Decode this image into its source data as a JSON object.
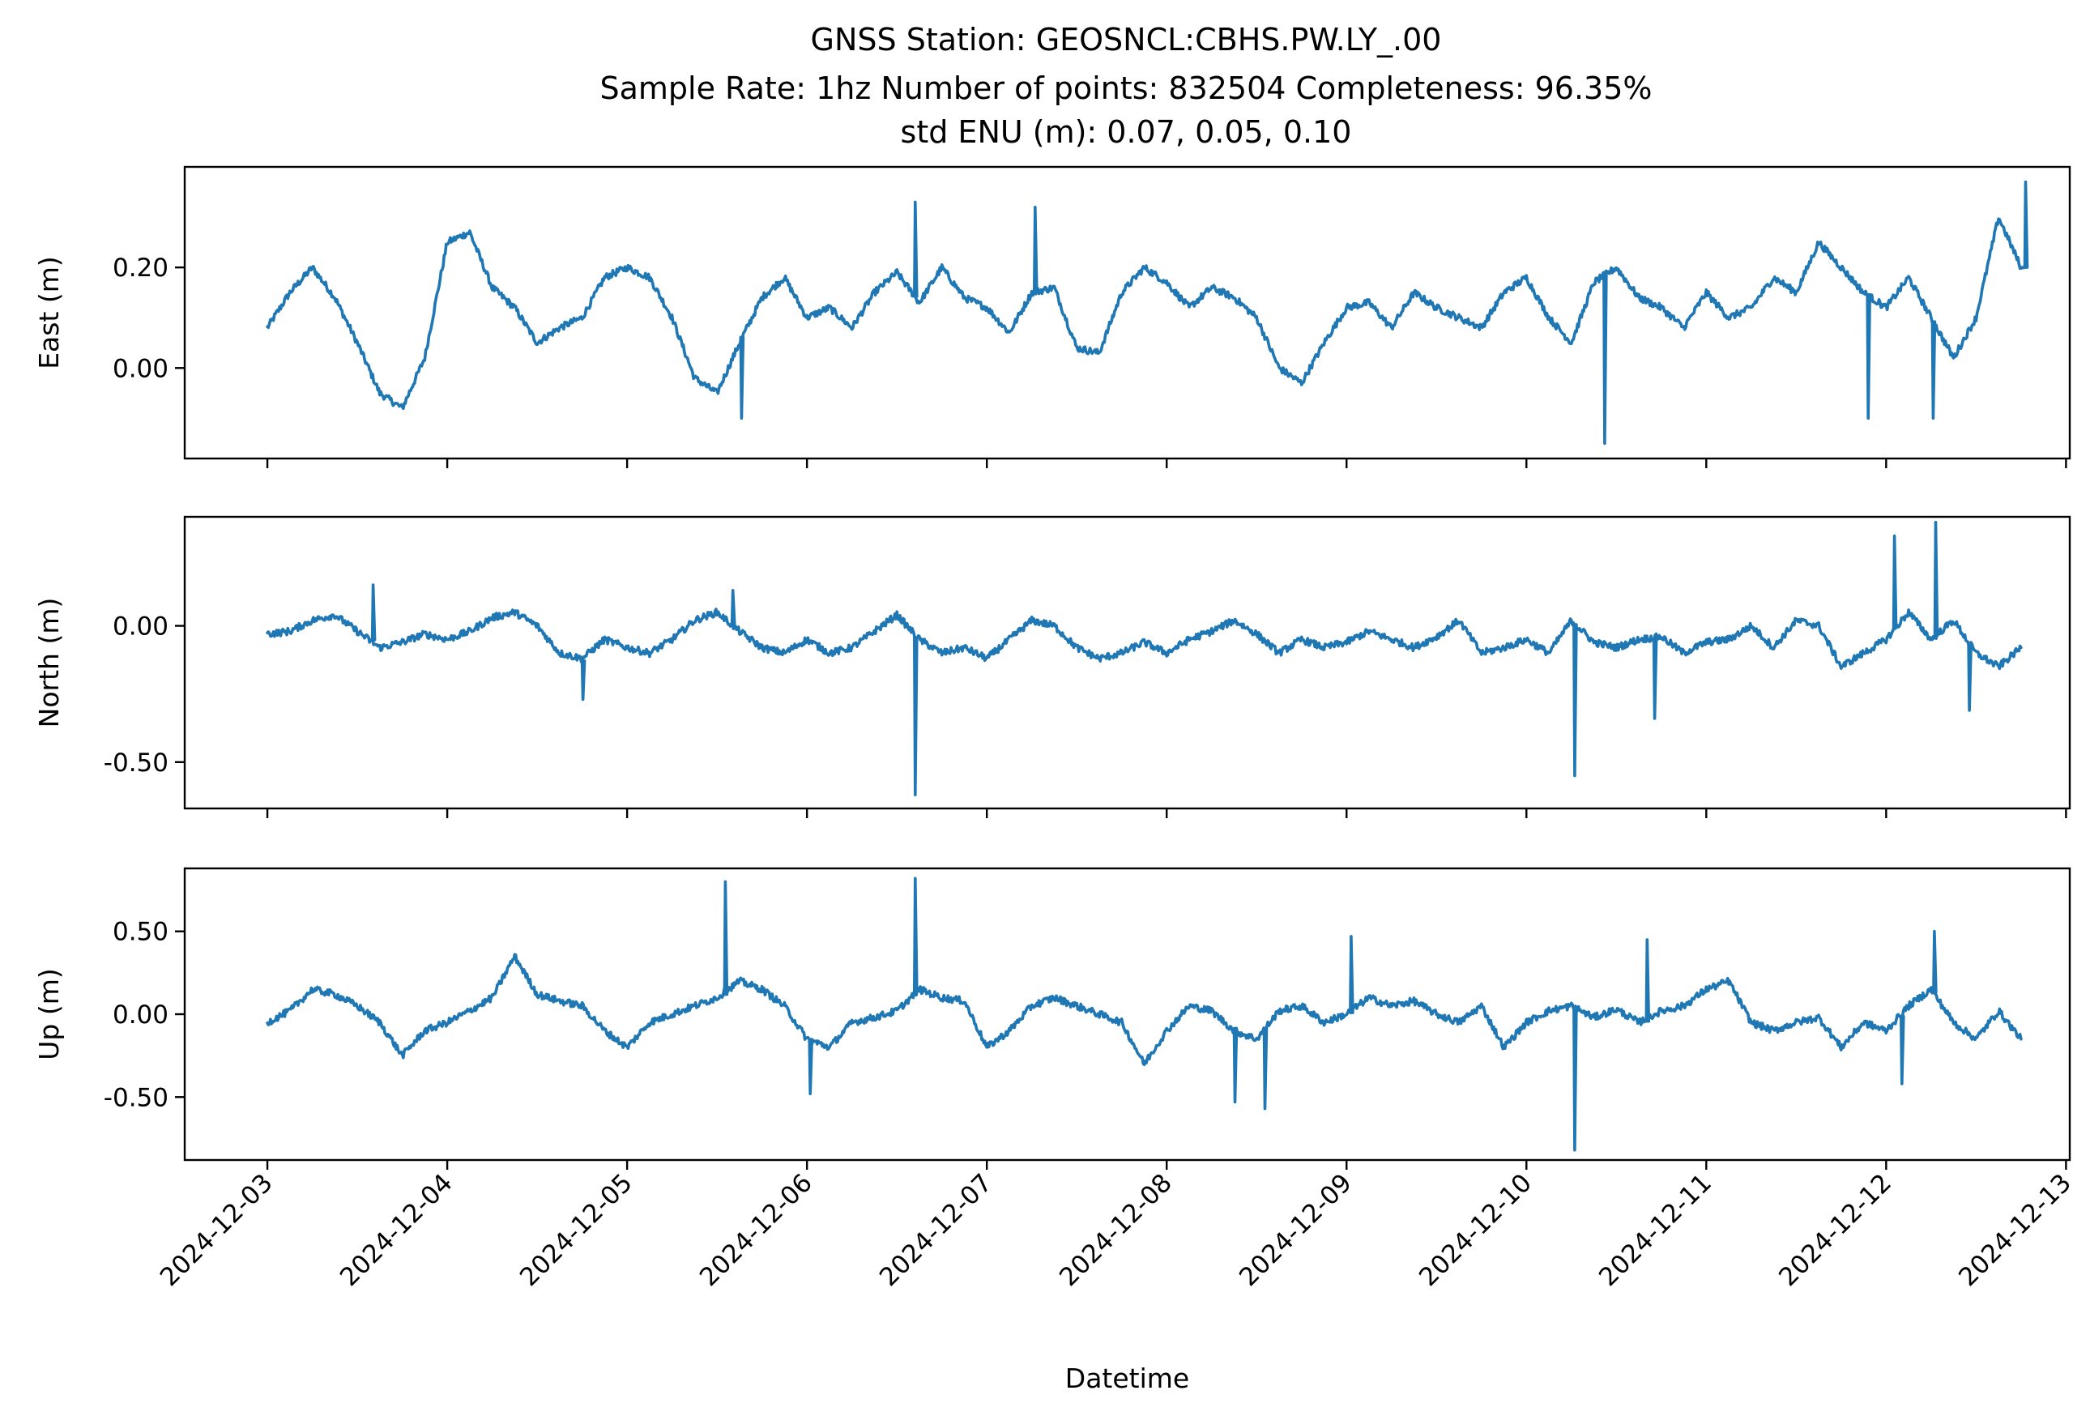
{
  "title": {
    "line1": "GNSS Station: GEOSNCL:CBHS.PW.LY_.00",
    "line2": "Sample Rate: 1hz   Number of points: 832504    Completeness:  96.35%",
    "line3": "std ENU (m):  0.07, 0.05, 0.10"
  },
  "colors": {
    "series": "#1f77b4"
  },
  "chart_data": [
    {
      "type": "line",
      "ylabel": "East (m)",
      "xlabel": "",
      "show_x_tick_labels": false,
      "xlim": [
        "2024-12-02T12:58",
        "2024-12-13T00:30"
      ],
      "ylim": [
        -0.18,
        0.4
      ],
      "yticks": [
        0.0,
        0.2
      ],
      "ytick_labels": [
        "0.00",
        "0.20"
      ],
      "series": [
        {
          "x": [
            "2024-12-03T00:00",
            "2024-12-03T03:00",
            "2024-12-03T06:00",
            "2024-12-03T09:00",
            "2024-12-03T12:00",
            "2024-12-03T15:00",
            "2024-12-03T18:00",
            "2024-12-03T21:00",
            "2024-12-04T00:00",
            "2024-12-04T03:00",
            "2024-12-04T06:00",
            "2024-12-04T09:00",
            "2024-12-04T12:00",
            "2024-12-04T15:00",
            "2024-12-04T18:00",
            "2024-12-04T21:00",
            "2024-12-05T00:00",
            "2024-12-05T03:00",
            "2024-12-05T06:00",
            "2024-12-05T09:00",
            "2024-12-05T12:00",
            "2024-12-05T15:00",
            "2024-12-05T18:00",
            "2024-12-05T21:00",
            "2024-12-06T00:00",
            "2024-12-06T03:00",
            "2024-12-06T06:00",
            "2024-12-06T09:00",
            "2024-12-06T12:00",
            "2024-12-06T15:00",
            "2024-12-06T18:00",
            "2024-12-06T21:00",
            "2024-12-07T00:00",
            "2024-12-07T03:00",
            "2024-12-07T06:00",
            "2024-12-07T09:00",
            "2024-12-07T12:00",
            "2024-12-07T15:00",
            "2024-12-07T18:00",
            "2024-12-07T21:00",
            "2024-12-08T00:00",
            "2024-12-08T03:00",
            "2024-12-08T06:00",
            "2024-12-08T09:00",
            "2024-12-08T12:00",
            "2024-12-08T15:00",
            "2024-12-08T18:00",
            "2024-12-08T21:00",
            "2024-12-09T00:00",
            "2024-12-09T03:00",
            "2024-12-09T06:00",
            "2024-12-09T09:00",
            "2024-12-09T12:00",
            "2024-12-09T15:00",
            "2024-12-09T18:00",
            "2024-12-09T21:00",
            "2024-12-10T00:00",
            "2024-12-10T03:00",
            "2024-12-10T06:00",
            "2024-12-10T09:00",
            "2024-12-10T12:00",
            "2024-12-10T15:00",
            "2024-12-10T18:00",
            "2024-12-10T21:00",
            "2024-12-11T00:00",
            "2024-12-11T03:00",
            "2024-12-11T06:00",
            "2024-12-11T09:00",
            "2024-12-11T12:00",
            "2024-12-11T15:00",
            "2024-12-11T18:00",
            "2024-12-11T21:00",
            "2024-12-12T00:00",
            "2024-12-12T03:00",
            "2024-12-12T06:00",
            "2024-12-12T09:00",
            "2024-12-12T12:00",
            "2024-12-12T15:00",
            "2024-12-12T18:00"
          ],
          "y": [
            0.08,
            0.15,
            0.2,
            0.14,
            0.05,
            -0.05,
            -0.08,
            0.02,
            0.25,
            0.27,
            0.16,
            0.12,
            0.05,
            0.08,
            0.1,
            0.18,
            0.2,
            0.18,
            0.1,
            -0.02,
            -0.05,
            0.05,
            0.14,
            0.18,
            0.1,
            0.12,
            0.08,
            0.15,
            0.19,
            0.13,
            0.2,
            0.14,
            0.12,
            0.07,
            0.15,
            0.16,
            0.04,
            0.03,
            0.15,
            0.2,
            0.17,
            0.12,
            0.16,
            0.14,
            0.1,
            0.0,
            -0.03,
            0.05,
            0.12,
            0.13,
            0.08,
            0.15,
            0.12,
            0.1,
            0.08,
            0.15,
            0.18,
            0.1,
            0.05,
            0.17,
            0.2,
            0.14,
            0.12,
            0.08,
            0.15,
            0.1,
            0.12,
            0.18,
            0.15,
            0.25,
            0.2,
            0.15,
            0.12,
            0.18,
            0.1,
            0.02,
            0.1,
            0.3,
            0.2
          ],
          "spikes": [
            [
              "2024-12-05T15:10",
              -0.1
            ],
            [
              "2024-12-06T14:20",
              0.33
            ],
            [
              "2024-12-07T06:20",
              0.32
            ],
            [
              "2024-12-10T10:20",
              -0.15
            ],
            [
              "2024-12-11T21:30",
              -0.1
            ],
            [
              "2024-12-12T06:10",
              -0.1
            ],
            [
              "2024-12-12T18:30",
              0.37
            ]
          ]
        }
      ]
    },
    {
      "type": "line",
      "ylabel": "North (m)",
      "xlabel": "",
      "show_x_tick_labels": false,
      "xlim": [
        "2024-12-02T12:58",
        "2024-12-13T00:30"
      ],
      "ylim": [
        -0.67,
        0.4
      ],
      "yticks": [
        -0.5,
        0.0
      ],
      "ytick_labels": [
        "-0.50",
        "0.00"
      ],
      "series": [
        {
          "x": [
            "2024-12-03T00:00",
            "2024-12-03T03:00",
            "2024-12-03T06:00",
            "2024-12-03T09:00",
            "2024-12-03T12:00",
            "2024-12-03T15:00",
            "2024-12-03T18:00",
            "2024-12-03T21:00",
            "2024-12-04T00:00",
            "2024-12-04T03:00",
            "2024-12-04T06:00",
            "2024-12-04T09:00",
            "2024-12-04T12:00",
            "2024-12-04T15:00",
            "2024-12-04T18:00",
            "2024-12-04T21:00",
            "2024-12-05T00:00",
            "2024-12-05T03:00",
            "2024-12-05T06:00",
            "2024-12-05T09:00",
            "2024-12-05T12:00",
            "2024-12-05T15:00",
            "2024-12-05T18:00",
            "2024-12-05T21:00",
            "2024-12-06T00:00",
            "2024-12-06T03:00",
            "2024-12-06T06:00",
            "2024-12-06T09:00",
            "2024-12-06T12:00",
            "2024-12-06T15:00",
            "2024-12-06T18:00",
            "2024-12-06T21:00",
            "2024-12-07T00:00",
            "2024-12-07T03:00",
            "2024-12-07T06:00",
            "2024-12-07T09:00",
            "2024-12-07T12:00",
            "2024-12-07T15:00",
            "2024-12-07T18:00",
            "2024-12-07T21:00",
            "2024-12-08T00:00",
            "2024-12-08T03:00",
            "2024-12-08T06:00",
            "2024-12-08T09:00",
            "2024-12-08T12:00",
            "2024-12-08T15:00",
            "2024-12-08T18:00",
            "2024-12-08T21:00",
            "2024-12-09T00:00",
            "2024-12-09T03:00",
            "2024-12-09T06:00",
            "2024-12-09T09:00",
            "2024-12-09T12:00",
            "2024-12-09T15:00",
            "2024-12-09T18:00",
            "2024-12-09T21:00",
            "2024-12-10T00:00",
            "2024-12-10T03:00",
            "2024-12-10T06:00",
            "2024-12-10T09:00",
            "2024-12-10T12:00",
            "2024-12-10T15:00",
            "2024-12-10T18:00",
            "2024-12-10T21:00",
            "2024-12-11T00:00",
            "2024-12-11T03:00",
            "2024-12-11T06:00",
            "2024-12-11T09:00",
            "2024-12-11T12:00",
            "2024-12-11T15:00",
            "2024-12-11T18:00",
            "2024-12-11T21:00",
            "2024-12-12T00:00",
            "2024-12-12T03:00",
            "2024-12-12T06:00",
            "2024-12-12T09:00",
            "2024-12-12T12:00",
            "2024-12-12T15:00",
            "2024-12-12T18:00"
          ],
          "y": [
            -0.03,
            -0.02,
            0.02,
            0.04,
            -0.02,
            -0.08,
            -0.06,
            -0.03,
            -0.05,
            -0.02,
            0.03,
            0.05,
            0.0,
            -0.1,
            -0.12,
            -0.05,
            -0.08,
            -0.1,
            -0.05,
            0.02,
            0.05,
            -0.02,
            -0.08,
            -0.1,
            -0.05,
            -0.1,
            -0.08,
            -0.02,
            0.04,
            -0.05,
            -0.1,
            -0.08,
            -0.12,
            -0.05,
            0.02,
            0.0,
            -0.08,
            -0.12,
            -0.1,
            -0.06,
            -0.1,
            -0.05,
            -0.02,
            0.02,
            -0.03,
            -0.1,
            -0.05,
            -0.08,
            -0.06,
            -0.02,
            -0.05,
            -0.08,
            -0.04,
            0.02,
            -0.1,
            -0.08,
            -0.05,
            -0.1,
            0.02,
            -0.06,
            -0.08,
            -0.05,
            -0.04,
            -0.1,
            -0.06,
            -0.05,
            0.0,
            -0.08,
            0.02,
            0.0,
            -0.15,
            -0.1,
            -0.05,
            0.05,
            -0.05,
            0.02,
            -0.1,
            -0.15,
            -0.08
          ],
          "spikes": [
            [
              "2024-12-03T14:00",
              0.15
            ],
            [
              "2024-12-04T18:00",
              -0.27
            ],
            [
              "2024-12-05T14:00",
              0.13
            ],
            [
              "2024-12-06T14:20",
              -0.62
            ],
            [
              "2024-12-10T06:20",
              -0.55
            ],
            [
              "2024-12-10T17:00",
              -0.34
            ],
            [
              "2024-12-12T01:00",
              0.33
            ],
            [
              "2024-12-12T06:30",
              0.38
            ],
            [
              "2024-12-12T11:00",
              -0.31
            ]
          ]
        }
      ]
    },
    {
      "type": "line",
      "ylabel": "Up (m)",
      "xlabel": "Datetime",
      "show_x_tick_labels": true,
      "xlim": [
        "2024-12-02T12:58",
        "2024-12-13T00:30"
      ],
      "ylim": [
        -0.88,
        0.88
      ],
      "yticks": [
        -0.5,
        0.0,
        0.5
      ],
      "ytick_labels": [
        "-0.50",
        "0.00",
        "0.50"
      ],
      "xticks": [
        "2024-12-03",
        "2024-12-04",
        "2024-12-05",
        "2024-12-06",
        "2024-12-07",
        "2024-12-08",
        "2024-12-09",
        "2024-12-10",
        "2024-12-11",
        "2024-12-12",
        "2024-12-13"
      ],
      "series": [
        {
          "x": [
            "2024-12-03T00:00",
            "2024-12-03T03:00",
            "2024-12-03T06:00",
            "2024-12-03T09:00",
            "2024-12-03T12:00",
            "2024-12-03T15:00",
            "2024-12-03T18:00",
            "2024-12-03T21:00",
            "2024-12-04T00:00",
            "2024-12-04T03:00",
            "2024-12-04T06:00",
            "2024-12-04T09:00",
            "2024-12-04T12:00",
            "2024-12-04T15:00",
            "2024-12-04T18:00",
            "2024-12-04T21:00",
            "2024-12-05T00:00",
            "2024-12-05T03:00",
            "2024-12-05T06:00",
            "2024-12-05T09:00",
            "2024-12-05T12:00",
            "2024-12-05T15:00",
            "2024-12-05T18:00",
            "2024-12-05T21:00",
            "2024-12-06T00:00",
            "2024-12-06T03:00",
            "2024-12-06T06:00",
            "2024-12-06T09:00",
            "2024-12-06T12:00",
            "2024-12-06T15:00",
            "2024-12-06T18:00",
            "2024-12-06T21:00",
            "2024-12-07T00:00",
            "2024-12-07T03:00",
            "2024-12-07T06:00",
            "2024-12-07T09:00",
            "2024-12-07T12:00",
            "2024-12-07T15:00",
            "2024-12-07T18:00",
            "2024-12-07T21:00",
            "2024-12-08T00:00",
            "2024-12-08T03:00",
            "2024-12-08T06:00",
            "2024-12-08T09:00",
            "2024-12-08T12:00",
            "2024-12-08T15:00",
            "2024-12-08T18:00",
            "2024-12-08T21:00",
            "2024-12-09T00:00",
            "2024-12-09T03:00",
            "2024-12-09T06:00",
            "2024-12-09T09:00",
            "2024-12-09T12:00",
            "2024-12-09T15:00",
            "2024-12-09T18:00",
            "2024-12-09T21:00",
            "2024-12-10T00:00",
            "2024-12-10T03:00",
            "2024-12-10T06:00",
            "2024-12-10T09:00",
            "2024-12-10T12:00",
            "2024-12-10T15:00",
            "2024-12-10T18:00",
            "2024-12-10T21:00",
            "2024-12-11T00:00",
            "2024-12-11T03:00",
            "2024-12-11T06:00",
            "2024-12-11T09:00",
            "2024-12-11T12:00",
            "2024-12-11T15:00",
            "2024-12-11T18:00",
            "2024-12-11T21:00",
            "2024-12-12T00:00",
            "2024-12-12T03:00",
            "2024-12-12T06:00",
            "2024-12-12T09:00",
            "2024-12-12T12:00",
            "2024-12-12T15:00",
            "2024-12-12T18:00"
          ],
          "y": [
            -0.05,
            0.02,
            0.15,
            0.12,
            0.05,
            -0.05,
            -0.25,
            -0.1,
            -0.05,
            0.02,
            0.1,
            0.35,
            0.12,
            0.08,
            0.05,
            -0.1,
            -0.2,
            -0.05,
            0.0,
            0.05,
            0.1,
            0.2,
            0.15,
            0.05,
            -0.15,
            -0.2,
            -0.05,
            -0.02,
            0.02,
            0.15,
            0.1,
            0.08,
            -0.2,
            -0.1,
            0.05,
            0.1,
            0.05,
            0.0,
            -0.05,
            -0.3,
            -0.1,
            0.05,
            0.02,
            -0.1,
            -0.15,
            0.02,
            0.05,
            -0.05,
            0.0,
            0.1,
            0.05,
            0.08,
            0.0,
            -0.05,
            0.05,
            -0.2,
            -0.05,
            0.02,
            0.05,
            -0.02,
            0.03,
            -0.05,
            0.02,
            0.05,
            0.15,
            0.2,
            -0.05,
            -0.1,
            -0.05,
            -0.02,
            -0.2,
            -0.05,
            -0.1,
            0.05,
            0.15,
            -0.05,
            -0.15,
            0.02,
            -0.15
          ],
          "spikes": [
            [
              "2024-12-05T13:00",
              0.8
            ],
            [
              "2024-12-06T00:20",
              -0.48
            ],
            [
              "2024-12-06T14:20",
              0.82
            ],
            [
              "2024-12-08T09:00",
              -0.53
            ],
            [
              "2024-12-08T13:00",
              -0.57
            ],
            [
              "2024-12-09T00:30",
              0.47
            ],
            [
              "2024-12-10T06:20",
              -0.82
            ],
            [
              "2024-12-10T16:00",
              0.45
            ],
            [
              "2024-12-12T02:00",
              -0.42
            ],
            [
              "2024-12-12T06:20",
              0.5
            ]
          ]
        }
      ]
    }
  ]
}
